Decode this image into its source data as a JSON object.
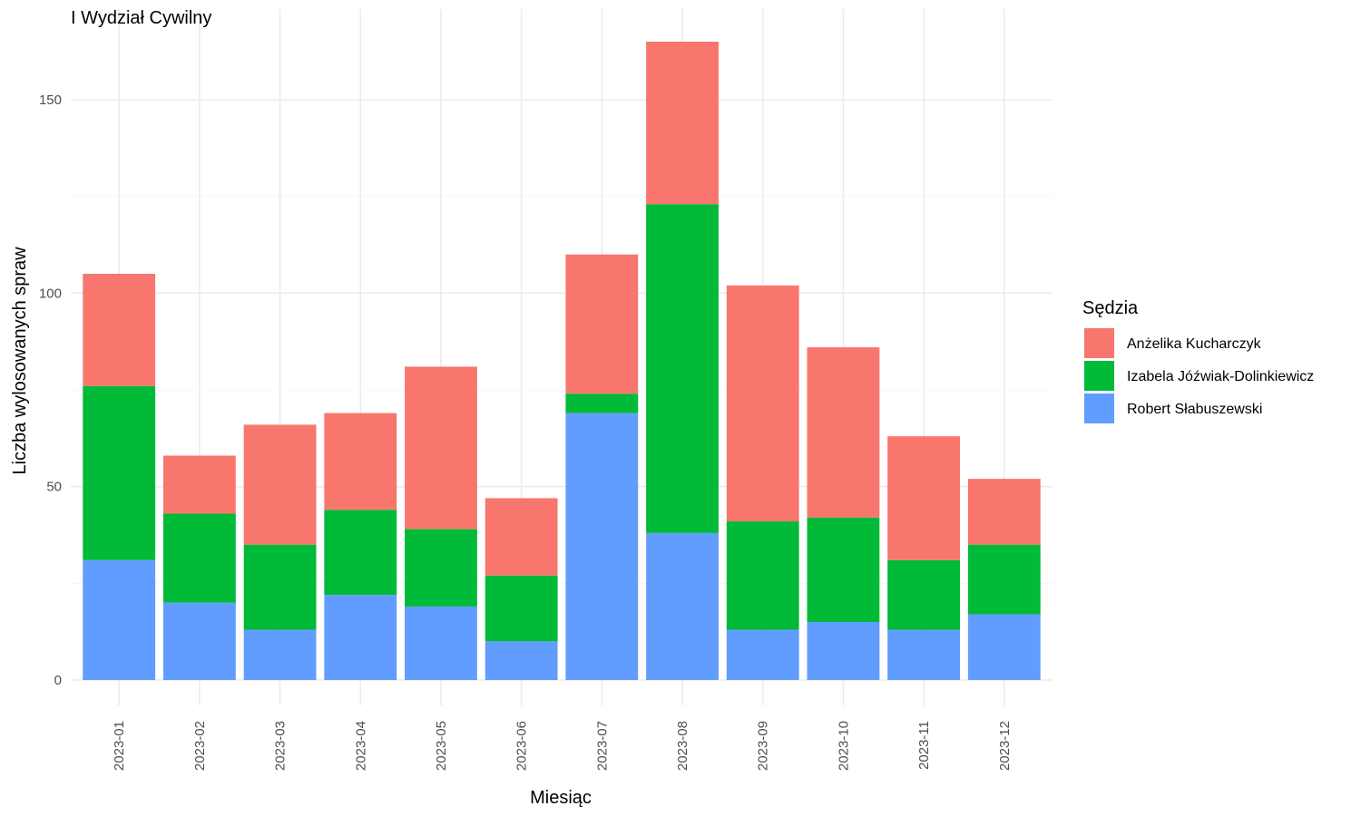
{
  "chart_data": {
    "type": "bar",
    "stacked": true,
    "title": "I Wydział Cywilny",
    "xlabel": "Miesiąc",
    "ylabel": "Liczba wylosowanych spraw",
    "ylim": [
      0,
      167
    ],
    "yticks": [
      0,
      50,
      100,
      150
    ],
    "grid": true,
    "legend": {
      "title": "Sędzia",
      "position": "right"
    },
    "categories": [
      "2023-01",
      "2023-02",
      "2023-03",
      "2023-04",
      "2023-05",
      "2023-06",
      "2023-07",
      "2023-08",
      "2023-09",
      "2023-10",
      "2023-11",
      "2023-12"
    ],
    "series": [
      {
        "name": "Anżelika Kucharczyk",
        "color": "#F8766D",
        "values": [
          29,
          15,
          31,
          25,
          42,
          20,
          36,
          42,
          61,
          44,
          32,
          17
        ]
      },
      {
        "name": "Izabela Jóźwiak-Dolinkiewicz",
        "color": "#00BA38",
        "values": [
          45,
          23,
          22,
          22,
          20,
          17,
          5,
          85,
          28,
          27,
          18,
          18
        ]
      },
      {
        "name": "Robert Słabuszewski",
        "color": "#619CFF",
        "values": [
          31,
          20,
          13,
          22,
          19,
          10,
          69,
          38,
          13,
          15,
          13,
          17
        ]
      }
    ]
  }
}
